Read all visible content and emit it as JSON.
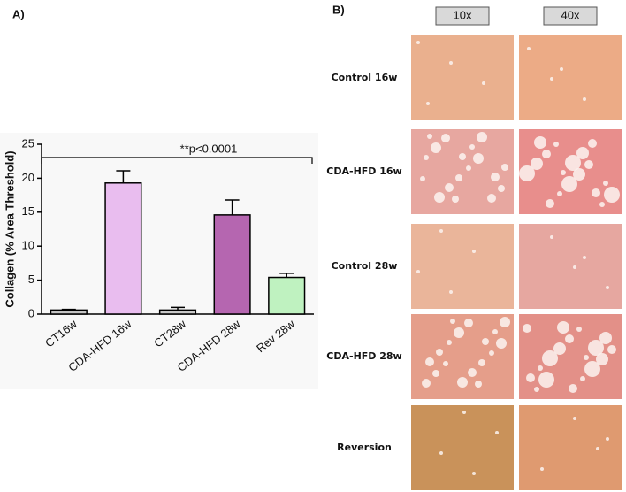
{
  "panel_labels": [
    "A)",
    "B)"
  ],
  "chart_data": {
    "type": "bar",
    "ylabel": "Collagen (% Area Threshold)",
    "categories": [
      "CT16w",
      "CDA-HFD 16w",
      "CT28w",
      "CDA-HFD 28w",
      "Rev 28w"
    ],
    "values": [
      0.6,
      19.3,
      0.6,
      14.6,
      5.4
    ],
    "errors": [
      0.1,
      1.8,
      0.4,
      2.2,
      0.6
    ],
    "colors": [
      "#c4c4c4",
      "#e9bdef",
      "#c8c8c8",
      "#b566b0",
      "#bff2c0"
    ],
    "ylim": [
      0,
      25
    ],
    "yticks": [
      0,
      5,
      10,
      15,
      20,
      25
    ],
    "annotation": "**p<0.0001"
  },
  "histology": {
    "columns": [
      "10x",
      "40x"
    ],
    "rows": [
      "Control 16w",
      "CDA-HFD 16w",
      "Control 28w",
      "CDA-HFD 28w",
      "Reversion"
    ]
  }
}
